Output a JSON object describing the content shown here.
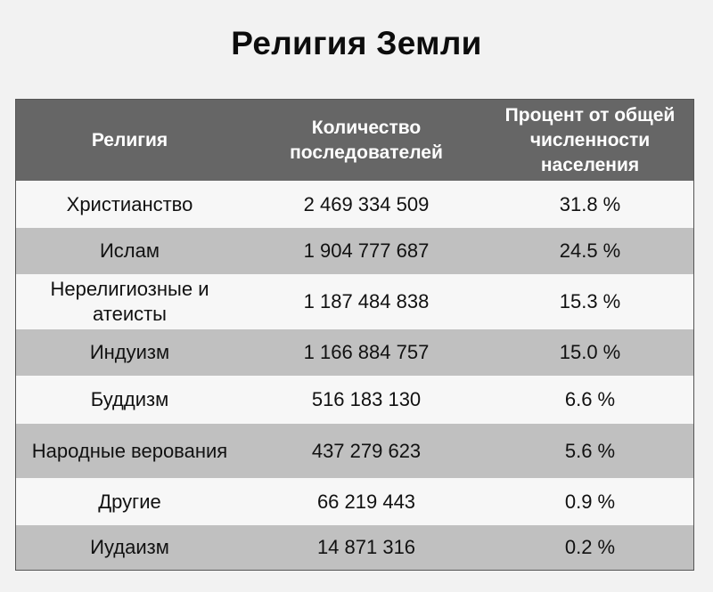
{
  "title": "Религия Земли",
  "headers": [
    "Религия",
    "Количество последователей",
    "Процент от общей численности населения"
  ],
  "rows": [
    {
      "religion": "Христианство",
      "followers": "2 469 334 509",
      "percent": "31.8 %"
    },
    {
      "religion": "Ислам",
      "followers": "1 904 777 687",
      "percent": "24.5 %"
    },
    {
      "religion": "Нерелигиозные и атеисты",
      "followers": "1 187 484 838",
      "percent": "15.3 %"
    },
    {
      "religion": "Индуизм",
      "followers": "1 166 884 757",
      "percent": "15.0 %"
    },
    {
      "religion": "Буддизм",
      "followers": "516 183 130",
      "percent": "6.6 %"
    },
    {
      "religion": "Народные верования",
      "followers": "437 279 623",
      "percent": "5.6 %"
    },
    {
      "religion": "Другие",
      "followers": "66 219 443",
      "percent": "0.9 %"
    },
    {
      "religion": "Иудаизм",
      "followers": "14 871 316",
      "percent": "0.2 %"
    }
  ],
  "colors": {
    "header_bg": "#666666",
    "row_light": "#f7f7f7",
    "row_dark": "#c0c0c0"
  }
}
